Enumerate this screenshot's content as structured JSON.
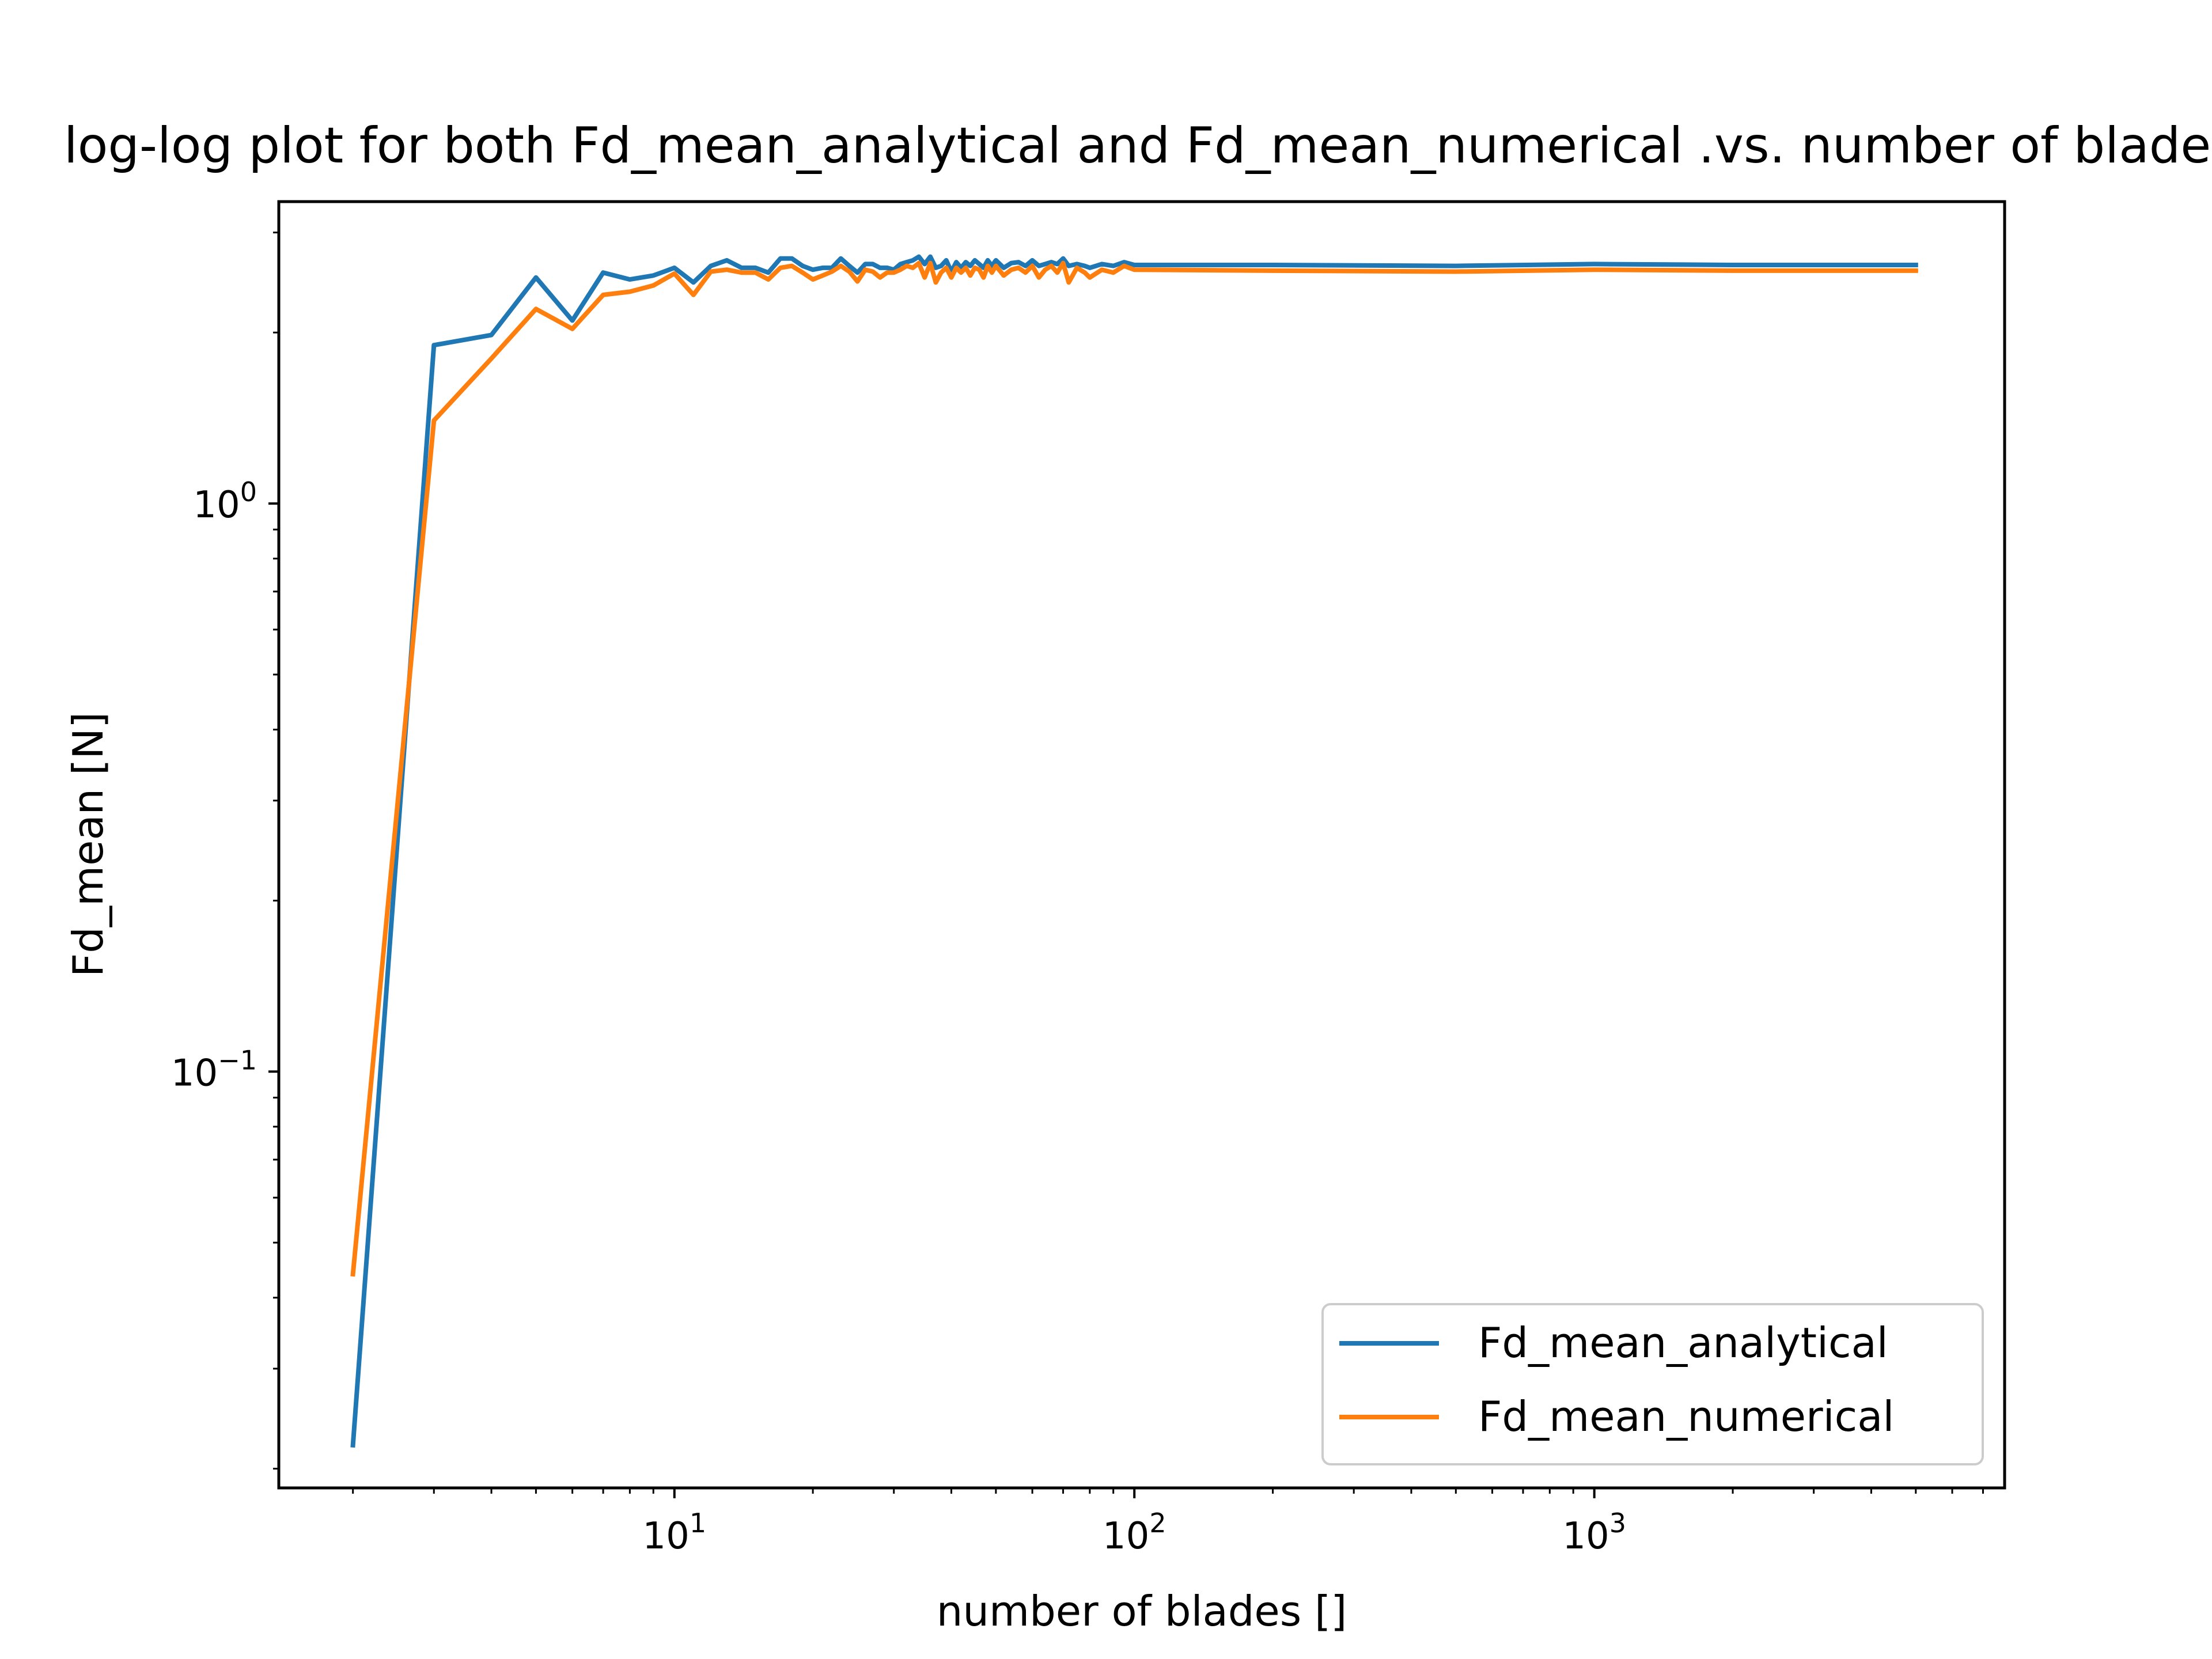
{
  "chart_data": {
    "type": "line",
    "title": "log-log plot for both Fd_mean_analytical and Fd_mean_numerical .vs. number of blades",
    "xlabel": "number of blades []",
    "ylabel": "Fd_mean [N]",
    "xscale": "log",
    "yscale": "log",
    "xlim": [
      1.38,
      7800
    ],
    "ylim": [
      0.0185,
      3.4
    ],
    "grid": false,
    "legend_position": "lower-right",
    "x_ticks": [
      {
        "value": 10,
        "base": "10",
        "exp": "1"
      },
      {
        "value": 100,
        "base": "10",
        "exp": "2"
      },
      {
        "value": 1000,
        "base": "10",
        "exp": "3"
      }
    ],
    "y_ticks": [
      {
        "value": 1,
        "base": "10",
        "exp": "0"
      },
      {
        "value": 0.1,
        "base": "10",
        "exp": "−1"
      }
    ],
    "series": [
      {
        "name": "Fd_mean_analytical",
        "color": "#1f77b4",
        "x": [
          2,
          3,
          4,
          5,
          6,
          7,
          8,
          9,
          10,
          11,
          12,
          13,
          14,
          15,
          16,
          17,
          18,
          19,
          20,
          21,
          22,
          23,
          24,
          25,
          26,
          27,
          28,
          29,
          30,
          31,
          32,
          33,
          34,
          35,
          36,
          37,
          38,
          39,
          40,
          41,
          42,
          43,
          44,
          45,
          46,
          47,
          48,
          49,
          50,
          52,
          54,
          56,
          58,
          60,
          62,
          64,
          66,
          68,
          70,
          72,
          75,
          78,
          80,
          85,
          90,
          95,
          100,
          200,
          500,
          1000,
          2000,
          5000
        ],
        "y": [
          0.022,
          1.9,
          1.98,
          2.5,
          2.1,
          2.55,
          2.48,
          2.52,
          2.6,
          2.45,
          2.62,
          2.68,
          2.6,
          2.6,
          2.55,
          2.7,
          2.7,
          2.62,
          2.58,
          2.6,
          2.6,
          2.7,
          2.62,
          2.55,
          2.64,
          2.64,
          2.6,
          2.6,
          2.58,
          2.64,
          2.66,
          2.68,
          2.72,
          2.64,
          2.72,
          2.6,
          2.62,
          2.68,
          2.56,
          2.66,
          2.6,
          2.66,
          2.62,
          2.68,
          2.64,
          2.6,
          2.68,
          2.62,
          2.68,
          2.6,
          2.65,
          2.66,
          2.62,
          2.68,
          2.62,
          2.64,
          2.66,
          2.64,
          2.7,
          2.62,
          2.64,
          2.62,
          2.6,
          2.64,
          2.62,
          2.66,
          2.63,
          2.63,
          2.62,
          2.64,
          2.63,
          2.63
        ]
      },
      {
        "name": "Fd_mean_numerical",
        "color": "#ff7f0e",
        "x": [
          2,
          3,
          4,
          5,
          6,
          7,
          8,
          9,
          10,
          11,
          12,
          13,
          14,
          15,
          16,
          17,
          18,
          19,
          20,
          21,
          22,
          23,
          24,
          25,
          26,
          27,
          28,
          29,
          30,
          31,
          32,
          33,
          34,
          35,
          36,
          37,
          38,
          39,
          40,
          41,
          42,
          43,
          44,
          45,
          46,
          47,
          48,
          49,
          50,
          52,
          54,
          56,
          58,
          60,
          62,
          64,
          66,
          68,
          70,
          72,
          75,
          78,
          80,
          85,
          90,
          95,
          100,
          200,
          500,
          1000,
          2000,
          5000
        ],
        "y": [
          0.044,
          1.4,
          1.8,
          2.2,
          2.03,
          2.33,
          2.36,
          2.42,
          2.54,
          2.33,
          2.56,
          2.58,
          2.55,
          2.55,
          2.48,
          2.6,
          2.62,
          2.55,
          2.48,
          2.52,
          2.56,
          2.62,
          2.56,
          2.46,
          2.58,
          2.56,
          2.5,
          2.55,
          2.55,
          2.58,
          2.62,
          2.6,
          2.65,
          2.5,
          2.65,
          2.45,
          2.55,
          2.6,
          2.5,
          2.6,
          2.55,
          2.6,
          2.52,
          2.6,
          2.58,
          2.5,
          2.62,
          2.55,
          2.62,
          2.52,
          2.58,
          2.6,
          2.55,
          2.62,
          2.5,
          2.58,
          2.62,
          2.55,
          2.65,
          2.45,
          2.6,
          2.55,
          2.5,
          2.58,
          2.55,
          2.62,
          2.58,
          2.57,
          2.56,
          2.58,
          2.57,
          2.57
        ]
      }
    ]
  }
}
